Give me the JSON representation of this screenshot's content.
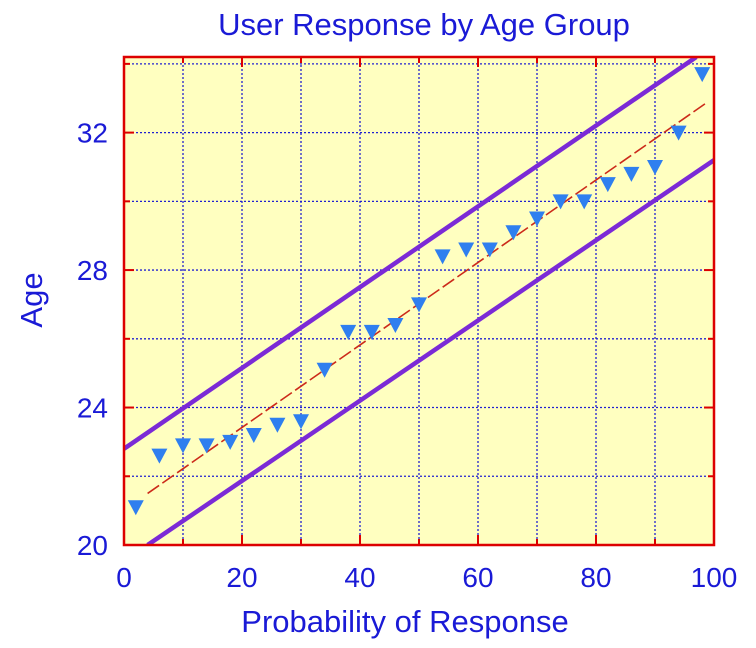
{
  "chart_data": {
    "type": "scatter",
    "title": "User Response by Age Group",
    "xlabel": "Probability of Response",
    "ylabel": "Age",
    "xlim": [
      0,
      100
    ],
    "ylim": [
      20,
      34.2
    ],
    "xticks": [
      0,
      20,
      40,
      60,
      80,
      100
    ],
    "xtick_labels": [
      "0",
      "20",
      "40",
      "60",
      "80",
      "100"
    ],
    "yticks": [
      20,
      24,
      28,
      32
    ],
    "ytick_labels": [
      "20",
      "24",
      "28",
      "32"
    ],
    "grid": true,
    "grid_x_minor": [
      10,
      30,
      50,
      70,
      90
    ],
    "grid_y_minor": [
      22,
      26,
      30,
      34
    ],
    "points": [
      {
        "x": 2,
        "y": 21.1
      },
      {
        "x": 6,
        "y": 22.6
      },
      {
        "x": 10,
        "y": 22.9
      },
      {
        "x": 14,
        "y": 22.9
      },
      {
        "x": 18,
        "y": 23.0
      },
      {
        "x": 22,
        "y": 23.2
      },
      {
        "x": 26,
        "y": 23.5
      },
      {
        "x": 30,
        "y": 23.6
      },
      {
        "x": 34,
        "y": 25.1
      },
      {
        "x": 38,
        "y": 26.2
      },
      {
        "x": 42,
        "y": 26.2
      },
      {
        "x": 46,
        "y": 26.4
      },
      {
        "x": 50,
        "y": 27.0
      },
      {
        "x": 54,
        "y": 28.4
      },
      {
        "x": 58,
        "y": 28.6
      },
      {
        "x": 62,
        "y": 28.6
      },
      {
        "x": 66,
        "y": 29.1
      },
      {
        "x": 70,
        "y": 29.5
      },
      {
        "x": 74,
        "y": 30.0
      },
      {
        "x": 78,
        "y": 30.0
      },
      {
        "x": 82,
        "y": 30.5
      },
      {
        "x": 86,
        "y": 30.8
      },
      {
        "x": 90,
        "y": 31.0
      },
      {
        "x": 94,
        "y": 32.0
      },
      {
        "x": 98,
        "y": 33.7
      }
    ],
    "fit_line": {
      "x": [
        4,
        99
      ],
      "y": [
        21.5,
        32.9
      ]
    },
    "upper_band": {
      "x": [
        0,
        97
      ],
      "y": [
        22.8,
        34.2
      ]
    },
    "lower_band": {
      "x": [
        4,
        100
      ],
      "y": [
        20.0,
        31.2
      ]
    },
    "colors": {
      "plot_background": "#ffffc0",
      "frame": "#dd0000",
      "grid": "#2020d0",
      "text": "#1a1ad6",
      "marker": "#2f7fef",
      "fit_line": "#cc2a1a",
      "bands": "#7b2ad6"
    },
    "marker_shape": "triangle-down"
  }
}
